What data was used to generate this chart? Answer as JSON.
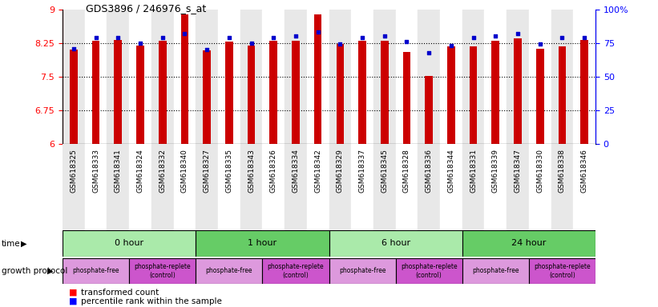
{
  "title": "GDS3896 / 246976_s_at",
  "samples": [
    "GSM618325",
    "GSM618333",
    "GSM618341",
    "GSM618324",
    "GSM618332",
    "GSM618340",
    "GSM618327",
    "GSM618335",
    "GSM618343",
    "GSM618326",
    "GSM618334",
    "GSM618342",
    "GSM618329",
    "GSM618337",
    "GSM618345",
    "GSM618328",
    "GSM618336",
    "GSM618344",
    "GSM618331",
    "GSM618339",
    "GSM618347",
    "GSM618330",
    "GSM618338",
    "GSM618346"
  ],
  "bar_values": [
    8.1,
    8.3,
    8.32,
    8.2,
    8.3,
    8.88,
    8.08,
    8.28,
    8.2,
    8.3,
    8.3,
    8.88,
    8.22,
    8.3,
    8.3,
    8.05,
    7.52,
    8.18,
    8.18,
    8.3,
    8.35,
    8.12,
    8.18,
    8.32
  ],
  "percentile_values": [
    71,
    79,
    79,
    75,
    79,
    82,
    70,
    79,
    75,
    79,
    80,
    83,
    74,
    79,
    80,
    76,
    68,
    73,
    79,
    80,
    82,
    74,
    79,
    79
  ],
  "bar_color": "#cc0000",
  "percentile_color": "#0000cc",
  "ylim_left": [
    6,
    9
  ],
  "ylim_right": [
    0,
    100
  ],
  "yticks_left": [
    6,
    6.75,
    7.5,
    8.25,
    9
  ],
  "yticks_right": [
    0,
    25,
    50,
    75,
    100
  ],
  "hlines": [
    6.75,
    7.5,
    8.25
  ],
  "time_groups": [
    {
      "label": "0 hour",
      "start": 0,
      "end": 6
    },
    {
      "label": "1 hour",
      "start": 6,
      "end": 12
    },
    {
      "label": "6 hour",
      "start": 12,
      "end": 18
    },
    {
      "label": "24 hour",
      "start": 18,
      "end": 24
    }
  ],
  "time_colors": [
    "#aaeaaa",
    "#66cc66",
    "#aaeaaa",
    "#66cc66"
  ],
  "protocol_groups": [
    {
      "label": "phosphate-free",
      "start": 0,
      "end": 3,
      "type": "free"
    },
    {
      "label": "phosphate-replete\n(control)",
      "start": 3,
      "end": 6,
      "type": "replete"
    },
    {
      "label": "phosphate-free",
      "start": 6,
      "end": 9,
      "type": "free"
    },
    {
      "label": "phosphate-replete\n(control)",
      "start": 9,
      "end": 12,
      "type": "replete"
    },
    {
      "label": "phosphate-free",
      "start": 12,
      "end": 15,
      "type": "free"
    },
    {
      "label": "phosphate-replete\n(control)",
      "start": 15,
      "end": 18,
      "type": "replete"
    },
    {
      "label": "phosphate-free",
      "start": 18,
      "end": 21,
      "type": "free"
    },
    {
      "label": "phosphate-replete\n(control)",
      "start": 21,
      "end": 24,
      "type": "replete"
    }
  ],
  "protocol_color_free": "#dd99dd",
  "protocol_color_replete": "#cc55cc",
  "col_bg_even": "#e8e8e8",
  "col_bg_odd": "#ffffff",
  "plot_bg": "#ffffff"
}
